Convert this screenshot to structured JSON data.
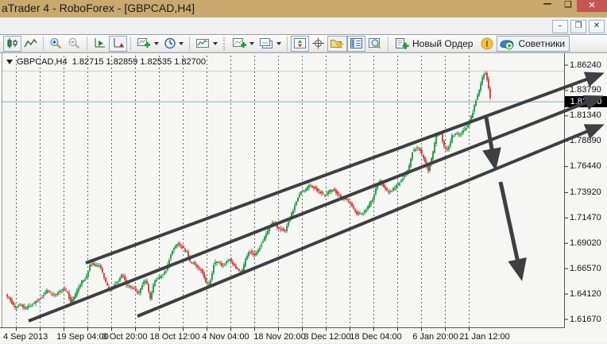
{
  "window": {
    "title": "aTrader 4 - RoboForex - [GBPCAD,H4]"
  },
  "icons": {
    "minimize_glyph": "—",
    "maximize_glyph": "❑",
    "close_glyph": "✕",
    "child_minimize_glyph": "–",
    "child_restore_glyph": "❐",
    "child_close_glyph": "✕",
    "triangle_down_glyph": "▼",
    "warning_glyph": "!"
  },
  "toolbar": {
    "new_order_label": "Новый Ордер",
    "advisors_label": "Советники"
  },
  "chart_data": {
    "type": "candlestick",
    "symbol": "GBPCAD",
    "timeframe": "H4",
    "symbol_period": "GBPCAD,H4",
    "ohlc_label": {
      "open": "1.82715",
      "high": "1.82859",
      "low": "1.82535",
      "close": "1.82700"
    },
    "current_price": "1.82700",
    "colors": {
      "up": "#2e9e4f",
      "down": "#cf4a45",
      "grid": "#3f3f3f",
      "annotation": "#3d3f42",
      "price_line": "#8ea9bf"
    },
    "ylim": [
      1.6098,
      1.8569
    ],
    "y_axis": {
      "ticks": [
        "1.86240",
        "1.83790",
        "1.81340",
        "1.78890",
        "1.76440",
        "1.73920",
        "1.71470",
        "1.69020",
        "1.66570",
        "1.64120",
        "1.61670"
      ],
      "map": {
        "p1": 1.6167,
        "y1": 401,
        "p2": 1.8624,
        "y2": 81
      }
    },
    "x_axis": {
      "grid": {
        "start": 20,
        "step": 30,
        "end": 607
      },
      "ticks": [
        {
          "label": "4 Sep 2013",
          "x": 26
        },
        {
          "label": "19 Sep 04:00",
          "x": 104
        },
        {
          "label": "3 Oct 20:00",
          "x": 157
        },
        {
          "label": "18 Oct 12:00",
          "x": 220
        },
        {
          "label": "4 Nov 04:00",
          "x": 284
        },
        {
          "label": "18 Nov 20:00",
          "x": 352
        },
        {
          "label": "3 Dec 12:00",
          "x": 412
        },
        {
          "label": "18 Dec 04:00",
          "x": 473
        },
        {
          "label": "6 Jan 20:00",
          "x": 548
        },
        {
          "label": "21 Jan 12:00",
          "x": 610
        }
      ]
    },
    "price_path": [
      [
        8,
        1.6405
      ],
      [
        14,
        1.6351
      ],
      [
        20,
        1.6274
      ],
      [
        26,
        1.6313
      ],
      [
        33,
        1.6267
      ],
      [
        40,
        1.6305
      ],
      [
        48,
        1.6351
      ],
      [
        55,
        1.639
      ],
      [
        60,
        1.6443
      ],
      [
        66,
        1.6413
      ],
      [
        72,
        1.6405
      ],
      [
        80,
        1.6459
      ],
      [
        86,
        1.6428
      ],
      [
        90,
        1.6328
      ],
      [
        95,
        1.639
      ],
      [
        100,
        1.6482
      ],
      [
        105,
        1.6543
      ],
      [
        110,
        1.6581
      ],
      [
        115,
        1.6712
      ],
      [
        121,
        1.6689
      ],
      [
        126,
        1.6697
      ],
      [
        130,
        1.662
      ],
      [
        135,
        1.6505
      ],
      [
        139,
        1.6443
      ],
      [
        145,
        1.6505
      ],
      [
        150,
        1.6543
      ],
      [
        155,
        1.6612
      ],
      [
        160,
        1.6497
      ],
      [
        166,
        1.6474
      ],
      [
        170,
        1.6466
      ],
      [
        175,
        1.6405
      ],
      [
        180,
        1.6505
      ],
      [
        185,
        1.6543
      ],
      [
        190,
        1.6367
      ],
      [
        195,
        1.6535
      ],
      [
        200,
        1.6558
      ],
      [
        205,
        1.6597
      ],
      [
        210,
        1.6635
      ],
      [
        215,
        1.6773
      ],
      [
        220,
        1.6865
      ],
      [
        225,
        1.6904
      ],
      [
        230,
        1.6865
      ],
      [
        236,
        1.6819
      ],
      [
        240,
        1.6727
      ],
      [
        246,
        1.6704
      ],
      [
        250,
        1.6673
      ],
      [
        255,
        1.6635
      ],
      [
        260,
        1.652
      ],
      [
        265,
        1.6505
      ],
      [
        270,
        1.6697
      ],
      [
        275,
        1.6735
      ],
      [
        280,
        1.6689
      ],
      [
        285,
        1.6712
      ],
      [
        290,
        1.675
      ],
      [
        295,
        1.6689
      ],
      [
        300,
        1.6651
      ],
      [
        305,
        1.6612
      ],
      [
        310,
        1.675
      ],
      [
        315,
        1.6827
      ],
      [
        322,
        1.6789
      ],
      [
        328,
        1.6865
      ],
      [
        335,
        1.698
      ],
      [
        340,
        1.7057
      ],
      [
        345,
        1.711
      ],
      [
        350,
        1.7057
      ],
      [
        356,
        1.7034
      ],
      [
        360,
        1.7019
      ],
      [
        365,
        1.7134
      ],
      [
        370,
        1.7226
      ],
      [
        375,
        1.7326
      ],
      [
        380,
        1.7403
      ],
      [
        386,
        1.7426
      ],
      [
        390,
        1.7456
      ],
      [
        396,
        1.7441
      ],
      [
        400,
        1.7418
      ],
      [
        405,
        1.7387
      ],
      [
        410,
        1.7364
      ],
      [
        415,
        1.7403
      ],
      [
        420,
        1.7426
      ],
      [
        425,
        1.7387
      ],
      [
        430,
        1.7349
      ],
      [
        435,
        1.7326
      ],
      [
        440,
        1.731
      ],
      [
        445,
        1.7249
      ],
      [
        450,
        1.7195
      ],
      [
        455,
        1.7188
      ],
      [
        460,
        1.7211
      ],
      [
        465,
        1.7264
      ],
      [
        470,
        1.7326
      ],
      [
        475,
        1.7456
      ],
      [
        480,
        1.7502
      ],
      [
        485,
        1.7441
      ],
      [
        490,
        1.7387
      ],
      [
        495,
        1.7418
      ],
      [
        500,
        1.7456
      ],
      [
        505,
        1.7502
      ],
      [
        510,
        1.7556
      ],
      [
        515,
        1.761
      ],
      [
        520,
        1.7786
      ],
      [
        525,
        1.7825
      ],
      [
        530,
        1.7802
      ],
      [
        535,
        1.771
      ],
      [
        540,
        1.7594
      ],
      [
        545,
        1.7748
      ],
      [
        550,
        1.7955
      ],
      [
        555,
        1.7978
      ],
      [
        560,
        1.784
      ],
      [
        565,
        1.7809
      ],
      [
        570,
        1.794
      ],
      [
        575,
        1.7955
      ],
      [
        580,
        1.7955
      ],
      [
        585,
        1.8001
      ],
      [
        590,
        1.804
      ],
      [
        595,
        1.8147
      ],
      [
        600,
        1.8285
      ],
      [
        604,
        1.8385
      ],
      [
        608,
        1.8507
      ],
      [
        611,
        1.8553
      ],
      [
        613,
        1.8523
      ],
      [
        615,
        1.8438
      ],
      [
        617,
        1.8346
      ],
      [
        619,
        1.827
      ]
    ],
    "annotations": {
      "channel_lines": [
        {
          "from": [
            108,
            330
          ],
          "to": [
            757,
            92
          ]
        },
        {
          "from": [
            36,
            403
          ],
          "to": [
            756,
            121
          ]
        },
        {
          "from": [
            173,
            397
          ],
          "to": [
            757,
            157
          ]
        }
      ],
      "down_arrows": [
        {
          "from": [
            612,
            147
          ],
          "to": [
            623,
            209
          ]
        },
        {
          "from": [
            630,
            228
          ],
          "to": [
            656,
            348
          ]
        }
      ]
    }
  }
}
